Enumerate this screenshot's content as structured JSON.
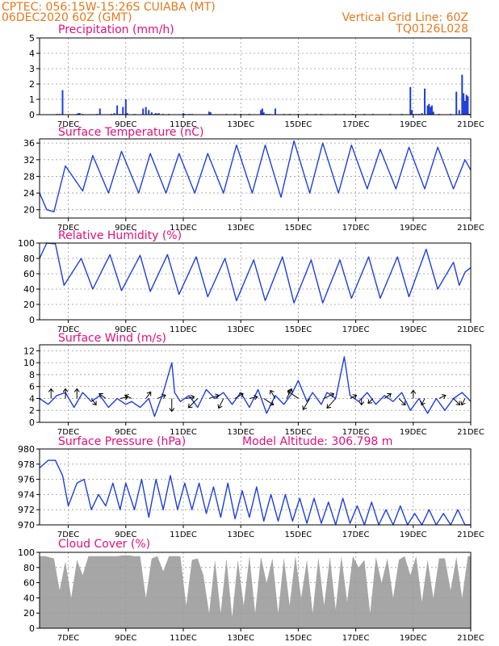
{
  "header": {
    "station_line": "CPTEC:  056:15W-15:26S  CUIABA (MT)",
    "date_line": "06DEC2020 60Z (GMT)",
    "grid_note": "Vertical Grid Line: 60Z",
    "run_code": "TQ0126L028",
    "model_altitude": "Model Altitude: 306.798 m"
  },
  "colors": {
    "header_text": "#e07a1e",
    "panel_title": "#e0107a",
    "series_line": "#1f3fdb",
    "bar_blue": "#1f3fdb",
    "cloud_gray": "#a6a6a6",
    "grid": "#9a9a9a",
    "wind_arrow": "#000000"
  },
  "x_axis": {
    "start_day": 6,
    "end_day": 21,
    "tick_labels": [
      "7DEC",
      "9DEC",
      "11DEC",
      "13DEC",
      "15DEC",
      "17DEC",
      "19DEC",
      "21DEC"
    ]
  },
  "chart_data": [
    {
      "type": "bar",
      "title": "Precipitation (mm/h)",
      "ylim": [
        0,
        5
      ],
      "yticks": [
        "0",
        "1",
        "2",
        "3",
        "4",
        "5"
      ],
      "x": [
        6.6,
        6.7,
        6.8,
        7.3,
        7.35,
        7.4,
        7.5,
        8.0,
        8.1,
        8.5,
        8.6,
        8.7,
        8.8,
        8.9,
        9.0,
        9.05,
        9.3,
        9.6,
        9.7,
        9.8,
        9.9,
        10.0,
        10.05,
        10.1,
        10.15,
        10.3,
        10.5,
        11.0,
        11.05,
        11.2,
        11.3,
        11.9,
        11.95,
        12.5,
        12.8,
        13.0,
        13.3,
        13.7,
        13.75,
        13.8,
        13.9,
        14.0,
        14.2,
        14.5,
        14.7,
        15.0,
        15.3,
        15.6,
        15.8,
        16.3,
        16.6,
        16.9,
        17.3,
        17.6,
        18.2,
        18.6,
        18.9,
        18.95,
        19.0,
        19.1,
        19.2,
        19.3,
        19.4,
        19.5,
        19.55,
        19.6,
        19.65,
        19.7,
        19.9,
        20.3,
        20.5,
        20.6,
        20.7,
        20.75,
        20.8,
        20.85,
        20.9,
        20.95
      ],
      "values": [
        0.05,
        0.05,
        1.6,
        0.05,
        0.1,
        0.1,
        0.05,
        0.05,
        0.4,
        0.05,
        0.1,
        0.6,
        0.05,
        0.5,
        1.0,
        0.1,
        0.05,
        0.4,
        0.5,
        0.3,
        0.15,
        0.05,
        0.1,
        0.05,
        0.1,
        0.05,
        0.05,
        0.1,
        0.05,
        0.05,
        0.05,
        0.2,
        0.15,
        0.05,
        0.05,
        0.05,
        0.05,
        0.3,
        0.4,
        0.15,
        0.05,
        0.05,
        0.4,
        0.05,
        0.05,
        0.05,
        0.05,
        0.05,
        0.05,
        0.05,
        0.05,
        0.05,
        0.05,
        0.05,
        0.05,
        0.05,
        1.8,
        0.3,
        0.05,
        0.05,
        0.05,
        0.1,
        1.7,
        0.6,
        0.7,
        0.5,
        0.6,
        0.2,
        0.05,
        0.05,
        1.5,
        0.3,
        2.6,
        1.4,
        0.9,
        1.3,
        1.2,
        0.05
      ]
    },
    {
      "type": "line",
      "title": "Surface Temperature (nC)",
      "ylim": [
        18,
        37
      ],
      "yticks": [
        "20",
        "24",
        "28",
        "32",
        "36"
      ],
      "x": [
        6.0,
        6.25,
        6.5,
        6.9,
        7.5,
        7.85,
        8.4,
        8.85,
        9.45,
        9.85,
        10.4,
        10.85,
        11.4,
        11.85,
        12.4,
        12.85,
        13.4,
        13.85,
        14.4,
        14.85,
        15.4,
        15.85,
        16.4,
        16.85,
        17.4,
        17.85,
        18.4,
        18.85,
        19.4,
        19.85,
        20.4,
        20.8,
        21.0
      ],
      "values": [
        24,
        20,
        19.5,
        30.5,
        24.5,
        33,
        24,
        34,
        24,
        33.5,
        24,
        33.5,
        24,
        33.5,
        24,
        35.5,
        24,
        35.5,
        23,
        36.5,
        24,
        36,
        24,
        35.5,
        25,
        34.5,
        25,
        35,
        25,
        35,
        25,
        32,
        29.5
      ]
    },
    {
      "type": "line",
      "title": "Relative Humidity (%)",
      "ylim": [
        0,
        100
      ],
      "yticks": [
        "0",
        "20",
        "40",
        "60",
        "80",
        "100"
      ],
      "x": [
        6.0,
        6.25,
        6.55,
        6.85,
        7.45,
        7.85,
        8.45,
        8.85,
        9.5,
        9.85,
        10.45,
        10.85,
        11.45,
        11.85,
        12.45,
        12.85,
        13.45,
        13.85,
        14.45,
        14.85,
        15.45,
        15.85,
        16.45,
        16.85,
        17.45,
        17.85,
        18.45,
        18.85,
        19.45,
        19.85,
        20.4,
        20.6,
        20.8,
        21.0
      ],
      "values": [
        80,
        100,
        99,
        45,
        80,
        40,
        85,
        38,
        84,
        37,
        85,
        33,
        82,
        30,
        80,
        25,
        78,
        25,
        82,
        22,
        78,
        22,
        78,
        28,
        82,
        28,
        82,
        30,
        92,
        40,
        75,
        45,
        62,
        68
      ]
    },
    {
      "type": "line",
      "title": "Surface Wind (m/s)",
      "ylim": [
        0,
        13
      ],
      "yticks": [
        "0",
        "2",
        "4",
        "6",
        "8",
        "10",
        "12"
      ],
      "x": [
        6.0,
        6.3,
        6.6,
        6.9,
        7.2,
        7.5,
        7.8,
        8.1,
        8.4,
        8.7,
        9.0,
        9.2,
        9.5,
        9.8,
        10.0,
        10.3,
        10.6,
        10.7,
        10.9,
        11.2,
        11.5,
        11.8,
        12.1,
        12.4,
        12.7,
        13.0,
        13.3,
        13.6,
        13.9,
        14.2,
        14.5,
        14.8,
        15.0,
        15.3,
        15.5,
        15.8,
        16.0,
        16.3,
        16.6,
        16.8,
        17.1,
        17.4,
        17.7,
        18.0,
        18.3,
        18.6,
        18.9,
        19.2,
        19.5,
        19.8,
        20.1,
        20.4,
        20.7,
        21.0
      ],
      "values": [
        4,
        3,
        4.5,
        5,
        2.5,
        5,
        3.5,
        4.5,
        2.5,
        4,
        3,
        3.5,
        2.5,
        4,
        1,
        5,
        10,
        5,
        3.5,
        4.5,
        2.5,
        5.5,
        4,
        5,
        3,
        5,
        2.5,
        5.5,
        1.5,
        4.5,
        3,
        5,
        7,
        3.5,
        5,
        3,
        5,
        4,
        11,
        4.5,
        3.5,
        5,
        3,
        4.5,
        3.5,
        5,
        2,
        4,
        1.5,
        4,
        2,
        4,
        5,
        3.5
      ],
      "arrow_points": [
        {
          "x": 6.4,
          "u": 0,
          "v": 6
        },
        {
          "x": 6.9,
          "u": 0,
          "v": 6
        },
        {
          "x": 7.3,
          "u": 0,
          "v": 6
        },
        {
          "x": 7.8,
          "u": 3,
          "v": -4
        },
        {
          "x": 8.3,
          "u": -4,
          "v": 3
        },
        {
          "x": 8.8,
          "u": 5,
          "v": 1
        },
        {
          "x": 9.2,
          "u": -4,
          "v": 2
        },
        {
          "x": 9.7,
          "u": 3,
          "v": 4
        },
        {
          "x": 10.1,
          "u": 5,
          "v": 2
        },
        {
          "x": 10.6,
          "u": 0,
          "v": -10
        },
        {
          "x": 11.1,
          "u": 5,
          "v": 1
        },
        {
          "x": 11.5,
          "u": -6,
          "v": -6
        },
        {
          "x": 11.9,
          "u": 6,
          "v": 2
        },
        {
          "x": 12.4,
          "u": -3,
          "v": -6
        },
        {
          "x": 12.8,
          "u": 5,
          "v": 3
        },
        {
          "x": 13.3,
          "u": 5,
          "v": 1
        },
        {
          "x": 13.8,
          "u": 6,
          "v": -4
        },
        {
          "x": 14.2,
          "u": -3,
          "v": 5
        },
        {
          "x": 14.6,
          "u": 3,
          "v": 6
        },
        {
          "x": 15.0,
          "u": -7,
          "v": 5
        },
        {
          "x": 15.4,
          "u": -6,
          "v": -10
        },
        {
          "x": 15.9,
          "u": 6,
          "v": 3
        },
        {
          "x": 16.3,
          "u": -8,
          "v": -9
        },
        {
          "x": 16.8,
          "u": 4,
          "v": 2
        },
        {
          "x": 17.2,
          "u": 0,
          "v": -4
        },
        {
          "x": 17.6,
          "u": -3,
          "v": -3
        },
        {
          "x": 18.0,
          "u": 4,
          "v": 3
        },
        {
          "x": 18.5,
          "u": 4,
          "v": -4
        },
        {
          "x": 19.0,
          "u": 0,
          "v": 5
        },
        {
          "x": 19.4,
          "u": -2,
          "v": -4
        },
        {
          "x": 19.9,
          "u": 4,
          "v": 2
        },
        {
          "x": 20.4,
          "u": 4,
          "v": -4
        },
        {
          "x": 20.8,
          "u": -2,
          "v": -4
        }
      ]
    },
    {
      "type": "line",
      "title": "Surface Pressure (hPa)",
      "ylim": [
        970,
        980
      ],
      "yticks": [
        "970",
        "972",
        "974",
        "976",
        "978",
        "980"
      ],
      "x": [
        6.0,
        6.3,
        6.55,
        6.8,
        7.0,
        7.3,
        7.55,
        7.8,
        8.05,
        8.3,
        8.55,
        8.8,
        9.0,
        9.3,
        9.55,
        9.8,
        10.05,
        10.3,
        10.55,
        10.8,
        11.05,
        11.3,
        11.55,
        11.8,
        12.05,
        12.3,
        12.55,
        12.8,
        13.05,
        13.3,
        13.55,
        13.8,
        14.05,
        14.3,
        14.55,
        14.8,
        15.05,
        15.3,
        15.55,
        15.8,
        16.05,
        16.3,
        16.55,
        16.8,
        17.05,
        17.3,
        17.55,
        17.8,
        18.05,
        18.3,
        18.55,
        18.8,
        19.05,
        19.3,
        19.55,
        19.8,
        20.05,
        20.3,
        20.55,
        20.8,
        21.0
      ],
      "values": [
        977.5,
        978.5,
        978.5,
        976.5,
        972.5,
        975.5,
        976,
        972,
        974,
        972.5,
        975.5,
        972,
        975.5,
        972,
        976,
        971,
        976,
        972,
        976.5,
        972,
        975.5,
        972,
        975.5,
        971.5,
        975,
        971,
        975.5,
        970.8,
        974.5,
        971,
        975,
        970.5,
        974,
        970.5,
        974,
        970.5,
        973.5,
        970.2,
        973.5,
        970.2,
        973,
        970,
        973.5,
        970.2,
        972.5,
        970,
        973,
        970,
        972,
        970,
        972.5,
        970,
        971.5,
        970,
        972,
        970,
        971.5,
        970,
        972,
        970,
        970
      ]
    },
    {
      "type": "area",
      "title": "Cloud Cover (%)",
      "ylim": [
        0,
        100
      ],
      "yticks": [
        "0",
        "20",
        "40",
        "60",
        "80",
        "100"
      ],
      "x": [
        6.0,
        6.2,
        6.5,
        6.7,
        6.9,
        7.1,
        7.3,
        7.5,
        7.7,
        7.9,
        8.1,
        8.3,
        8.5,
        8.7,
        8.9,
        9.1,
        9.3,
        9.5,
        9.7,
        9.9,
        10.1,
        10.3,
        10.5,
        10.7,
        10.9,
        11.1,
        11.3,
        11.5,
        11.7,
        11.9,
        12.1,
        12.3,
        12.5,
        12.7,
        12.9,
        13.1,
        13.3,
        13.5,
        13.7,
        13.9,
        14.1,
        14.3,
        14.5,
        14.7,
        14.9,
        15.1,
        15.3,
        15.5,
        15.7,
        15.9,
        16.1,
        16.3,
        16.5,
        16.7,
        16.9,
        17.1,
        17.3,
        17.5,
        17.7,
        17.9,
        18.1,
        18.3,
        18.5,
        18.7,
        18.9,
        19.1,
        19.3,
        19.5,
        19.7,
        19.9,
        20.1,
        20.3,
        20.5,
        20.7,
        20.9,
        21.0
      ],
      "values": [
        95,
        95,
        92,
        50,
        88,
        40,
        90,
        70,
        95,
        95,
        95,
        95,
        95,
        95,
        96,
        96,
        95,
        95,
        40,
        92,
        95,
        75,
        95,
        95,
        95,
        30,
        90,
        92,
        70,
        20,
        90,
        20,
        92,
        15,
        90,
        30,
        95,
        20,
        94,
        60,
        92,
        20,
        93,
        30,
        95,
        40,
        90,
        20,
        93,
        30,
        94,
        25,
        95,
        35,
        95,
        80,
        90,
        20,
        94,
        60,
        92,
        40,
        90,
        95,
        70,
        95,
        35,
        90,
        40,
        92,
        92,
        50,
        94,
        40,
        95,
        95
      ]
    }
  ]
}
